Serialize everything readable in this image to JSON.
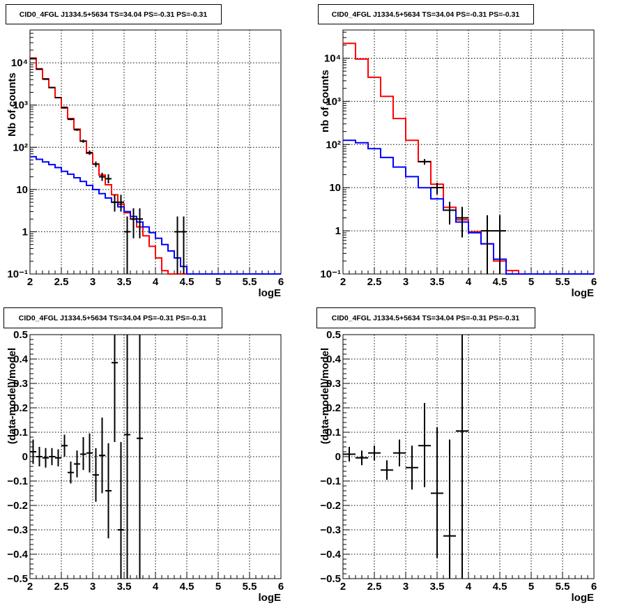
{
  "chart_data": [
    {
      "type": "step-line",
      "title": "CID0_4FGL J1334.5+5634 TS=34.04 PS=-0.31 PS=-0.31",
      "xlabel": "logE",
      "ylabel": "Nb of counts",
      "xlim": [
        2,
        6
      ],
      "ylim": [
        0.1,
        60000
      ],
      "yscale": "log",
      "grid": true,
      "xticks": [
        2,
        2.5,
        3,
        3.5,
        4,
        4.5,
        5,
        5.5,
        6
      ],
      "xticklabels": [
        "2",
        "2.5",
        "3",
        "3.5",
        "4",
        "4.5",
        "5",
        "5.5",
        "6"
      ],
      "yticks": [
        0.1,
        1,
        10,
        100,
        1000,
        10000
      ],
      "yticklabels": [
        "10⁻¹",
        "1",
        "10",
        "10²",
        "10³",
        "10⁴"
      ],
      "series": [
        {
          "color": "#ff0000",
          "bin_width": 0.1,
          "x_start": 2.0,
          "values": [
            13000,
            7000,
            4200,
            2600,
            1500,
            850,
            480,
            270,
            140,
            72,
            40,
            22,
            13,
            7.5,
            4.5,
            2.8,
            2.0,
            1.3,
            0.8,
            0.45,
            0.24,
            0.12,
            0.1,
            0.1,
            0.1,
            0.1,
            0.1,
            0.1,
            0.1,
            0.1,
            0.1,
            0.1,
            0.1,
            0.1,
            0.1,
            0.1,
            0.1,
            0.1,
            0.1,
            0.1
          ]
        },
        {
          "color": "#0000ff",
          "bin_width": 0.1,
          "x_start": 2.0,
          "values": [
            60,
            52,
            45,
            39,
            33,
            27,
            23,
            19,
            15.5,
            12.5,
            10,
            8,
            6.3,
            5,
            3.9,
            3.0,
            2.3,
            1.7,
            1.3,
            0.95,
            0.7,
            0.5,
            0.35,
            0.24,
            0.15,
            0.1,
            0.1,
            0.1,
            0.1,
            0.1,
            0.1,
            0.1,
            0.1,
            0.1,
            0.1,
            0.1,
            0.1,
            0.1,
            0.1,
            0.1
          ]
        }
      ],
      "points": [
        {
          "x": 2.05,
          "y": 12500,
          "ylo": 12300,
          "yhi": 12700
        },
        {
          "x": 2.15,
          "y": 7200,
          "ylo": 7000,
          "yhi": 7400
        },
        {
          "x": 2.25,
          "y": 4100,
          "ylo": 3970,
          "yhi": 4230
        },
        {
          "x": 2.35,
          "y": 2600,
          "ylo": 2500,
          "yhi": 2700
        },
        {
          "x": 2.45,
          "y": 1500,
          "ylo": 1440,
          "yhi": 1560
        },
        {
          "x": 2.55,
          "y": 880,
          "ylo": 840,
          "yhi": 920
        },
        {
          "x": 2.65,
          "y": 460,
          "ylo": 440,
          "yhi": 480
        },
        {
          "x": 2.75,
          "y": 260,
          "ylo": 245,
          "yhi": 275
        },
        {
          "x": 2.85,
          "y": 140,
          "ylo": 128,
          "yhi": 152
        },
        {
          "x": 2.95,
          "y": 75,
          "ylo": 66,
          "yhi": 84
        },
        {
          "x": 3.05,
          "y": 40,
          "ylo": 34,
          "yhi": 46
        },
        {
          "x": 3.15,
          "y": 20,
          "ylo": 16,
          "yhi": 25
        },
        {
          "x": 3.25,
          "y": 18,
          "ylo": 14,
          "yhi": 23
        },
        {
          "x": 3.35,
          "y": 5,
          "ylo": 3,
          "yhi": 7.5
        },
        {
          "x": 3.45,
          "y": 5,
          "ylo": 3,
          "yhi": 7.5
        },
        {
          "x": 3.55,
          "y": 1,
          "ylo": 0.1,
          "yhi": 2.3
        },
        {
          "x": 3.65,
          "y": 2,
          "ylo": 0.7,
          "yhi": 3.6
        },
        {
          "x": 3.75,
          "y": 2,
          "ylo": 0.7,
          "yhi": 3.6
        },
        {
          "x": 4.35,
          "y": 1,
          "ylo": 0.1,
          "yhi": 2.3
        },
        {
          "x": 4.45,
          "y": 1,
          "ylo": 0.1,
          "yhi": 2.3
        }
      ]
    },
    {
      "type": "step-line",
      "title": "CID0_4FGL J1334.5+5634 TS=34.04 PS=-0.31 PS=-0.31",
      "xlabel": "logE",
      "ylabel": "nb of counts",
      "xlim": [
        2,
        6
      ],
      "ylim": [
        0.1,
        45000
      ],
      "yscale": "log",
      "grid": true,
      "xticks": [
        2,
        2.5,
        3,
        3.5,
        4,
        4.5,
        5,
        5.5,
        6
      ],
      "xticklabels": [
        "2",
        "2.5",
        "3",
        "3.5",
        "4",
        "4.5",
        "5",
        "5.5",
        "6"
      ],
      "yticks": [
        0.1,
        1,
        10,
        100,
        1000,
        10000
      ],
      "yticklabels": [
        "10⁻¹",
        "1",
        "10",
        "10²",
        "10³",
        "10⁴"
      ],
      "series": [
        {
          "color": "#ff0000",
          "bin_width": 0.2,
          "x_start": 2.0,
          "values": [
            22000,
            9500,
            3600,
            1300,
            400,
            125,
            40,
            12,
            3.5,
            1.8,
            0.95,
            0.5,
            0.2,
            0.12,
            0.1,
            0.1,
            0.1,
            0.1,
            0.1,
            0.1
          ]
        },
        {
          "color": "#0000ff",
          "bin_width": 0.2,
          "x_start": 2.0,
          "values": [
            125,
            110,
            80,
            50,
            30,
            18,
            10,
            5.5,
            3.0,
            1.6,
            0.9,
            0.5,
            0.22,
            0.1,
            0.1,
            0.1,
            0.1,
            0.1,
            0.1,
            0.1
          ]
        }
      ],
      "points": [
        {
          "x": 3.3,
          "y": 40,
          "ylo": 34,
          "yhi": 46
        },
        {
          "x": 3.5,
          "y": 10,
          "ylo": 7,
          "yhi": 13
        },
        {
          "x": 3.7,
          "y": 3,
          "ylo": 1.4,
          "yhi": 4.7
        },
        {
          "x": 3.9,
          "y": 2,
          "ylo": 0.7,
          "yhi": 3.6
        },
        {
          "x": 4.3,
          "y": 1,
          "ylo": 0.1,
          "yhi": 2.3
        },
        {
          "x": 4.5,
          "y": 1,
          "ylo": 0.1,
          "yhi": 2.3
        }
      ]
    },
    {
      "type": "scatter",
      "title": "CID0_4FGL J1334.5+5634 TS=34.04 PS=-0.31 PS=-0.31",
      "xlabel": "logE",
      "ylabel": "(data-model)/model",
      "xlim": [
        2,
        6
      ],
      "ylim": [
        -0.5,
        0.5
      ],
      "yscale": "linear",
      "grid": true,
      "xticks": [
        2,
        2.5,
        3,
        3.5,
        4,
        4.5,
        5,
        5.5,
        6
      ],
      "xticklabels": [
        "2",
        "2.5",
        "3",
        "3.5",
        "4",
        "4.5",
        "5",
        "5.5",
        "6"
      ],
      "yticks": [
        -0.5,
        -0.4,
        -0.3,
        -0.2,
        -0.1,
        0,
        0.1,
        0.2,
        0.3,
        0.4,
        0.5
      ],
      "yticklabels": [
        "−0.5",
        "−0.4",
        "−0.3",
        "−0.2",
        "−0.1",
        "0",
        "0.1",
        "0.2",
        "0.3",
        "0.4",
        "0.5"
      ],
      "xerr": 0.05,
      "points": [
        {
          "x": 2.05,
          "y": 0.02,
          "ylo": -0.03,
          "yhi": 0.07
        },
        {
          "x": 2.15,
          "y": 0.0,
          "ylo": -0.04,
          "yhi": 0.04
        },
        {
          "x": 2.25,
          "y": -0.005,
          "ylo": -0.045,
          "yhi": 0.035
        },
        {
          "x": 2.35,
          "y": 0.0,
          "ylo": -0.035,
          "yhi": 0.035
        },
        {
          "x": 2.45,
          "y": -0.005,
          "ylo": -0.04,
          "yhi": 0.03
        },
        {
          "x": 2.55,
          "y": 0.045,
          "ylo": 0.0,
          "yhi": 0.09
        },
        {
          "x": 2.65,
          "y": -0.065,
          "ylo": -0.11,
          "yhi": -0.02
        },
        {
          "x": 2.75,
          "y": -0.03,
          "ylo": -0.085,
          "yhi": 0.025
        },
        {
          "x": 2.85,
          "y": 0.01,
          "ylo": -0.055,
          "yhi": 0.08
        },
        {
          "x": 2.95,
          "y": 0.015,
          "ylo": -0.065,
          "yhi": 0.095
        },
        {
          "x": 3.05,
          "y": -0.075,
          "ylo": -0.185,
          "yhi": 0.035
        },
        {
          "x": 3.15,
          "y": 0.005,
          "ylo": -0.15,
          "yhi": 0.16
        },
        {
          "x": 3.25,
          "y": -0.14,
          "ylo": -0.335,
          "yhi": 0.055
        },
        {
          "x": 3.35,
          "y": 0.385,
          "ylo": 0.06,
          "yhi": 0.5
        },
        {
          "x": 3.45,
          "y": -0.3,
          "ylo": -0.5,
          "yhi": 0.06
        },
        {
          "x": 3.55,
          "y": 0.09,
          "ylo": -0.5,
          "yhi": 0.5
        },
        {
          "x": 3.75,
          "y": 0.075,
          "ylo": -0.5,
          "yhi": 0.5
        }
      ]
    },
    {
      "type": "scatter",
      "title": "CID0_4FGL J1334.5+5634 TS=34.04 PS=-0.31 PS=-0.31",
      "xlabel": "logE",
      "ylabel": "(data-model)/model",
      "xlim": [
        2,
        6
      ],
      "ylim": [
        -0.5,
        0.5
      ],
      "yscale": "linear",
      "grid": true,
      "xticks": [
        2,
        2.5,
        3,
        3.5,
        4,
        4.5,
        5,
        5.5,
        6
      ],
      "xticklabels": [
        "2",
        "2.5",
        "3",
        "3.5",
        "4",
        "4.5",
        "5",
        "5.5",
        "6"
      ],
      "yticks": [
        -0.5,
        -0.4,
        -0.3,
        -0.2,
        -0.1,
        0,
        0.1,
        0.2,
        0.3,
        0.4,
        0.5
      ],
      "yticklabels": [
        "−0.5",
        "−0.4",
        "−0.3",
        "−0.2",
        "−0.1",
        "0",
        "0.1",
        "0.2",
        "0.3",
        "0.4",
        "0.5"
      ],
      "xerr": 0.1,
      "points": [
        {
          "x": 2.1,
          "y": 0.01,
          "ylo": -0.02,
          "yhi": 0.04
        },
        {
          "x": 2.3,
          "y": -0.005,
          "ylo": -0.035,
          "yhi": 0.025
        },
        {
          "x": 2.5,
          "y": 0.015,
          "ylo": -0.015,
          "yhi": 0.045
        },
        {
          "x": 2.7,
          "y": -0.055,
          "ylo": -0.095,
          "yhi": -0.015
        },
        {
          "x": 2.9,
          "y": 0.015,
          "ylo": -0.04,
          "yhi": 0.07
        },
        {
          "x": 3.1,
          "y": -0.045,
          "ylo": -0.135,
          "yhi": 0.045
        },
        {
          "x": 3.3,
          "y": 0.045,
          "ylo": -0.125,
          "yhi": 0.22
        },
        {
          "x": 3.5,
          "y": -0.15,
          "ylo": -0.415,
          "yhi": 0.12
        },
        {
          "x": 3.7,
          "y": -0.325,
          "ylo": -0.5,
          "yhi": 0.07
        },
        {
          "x": 3.9,
          "y": 0.105,
          "ylo": -0.5,
          "yhi": 0.5
        }
      ]
    }
  ]
}
